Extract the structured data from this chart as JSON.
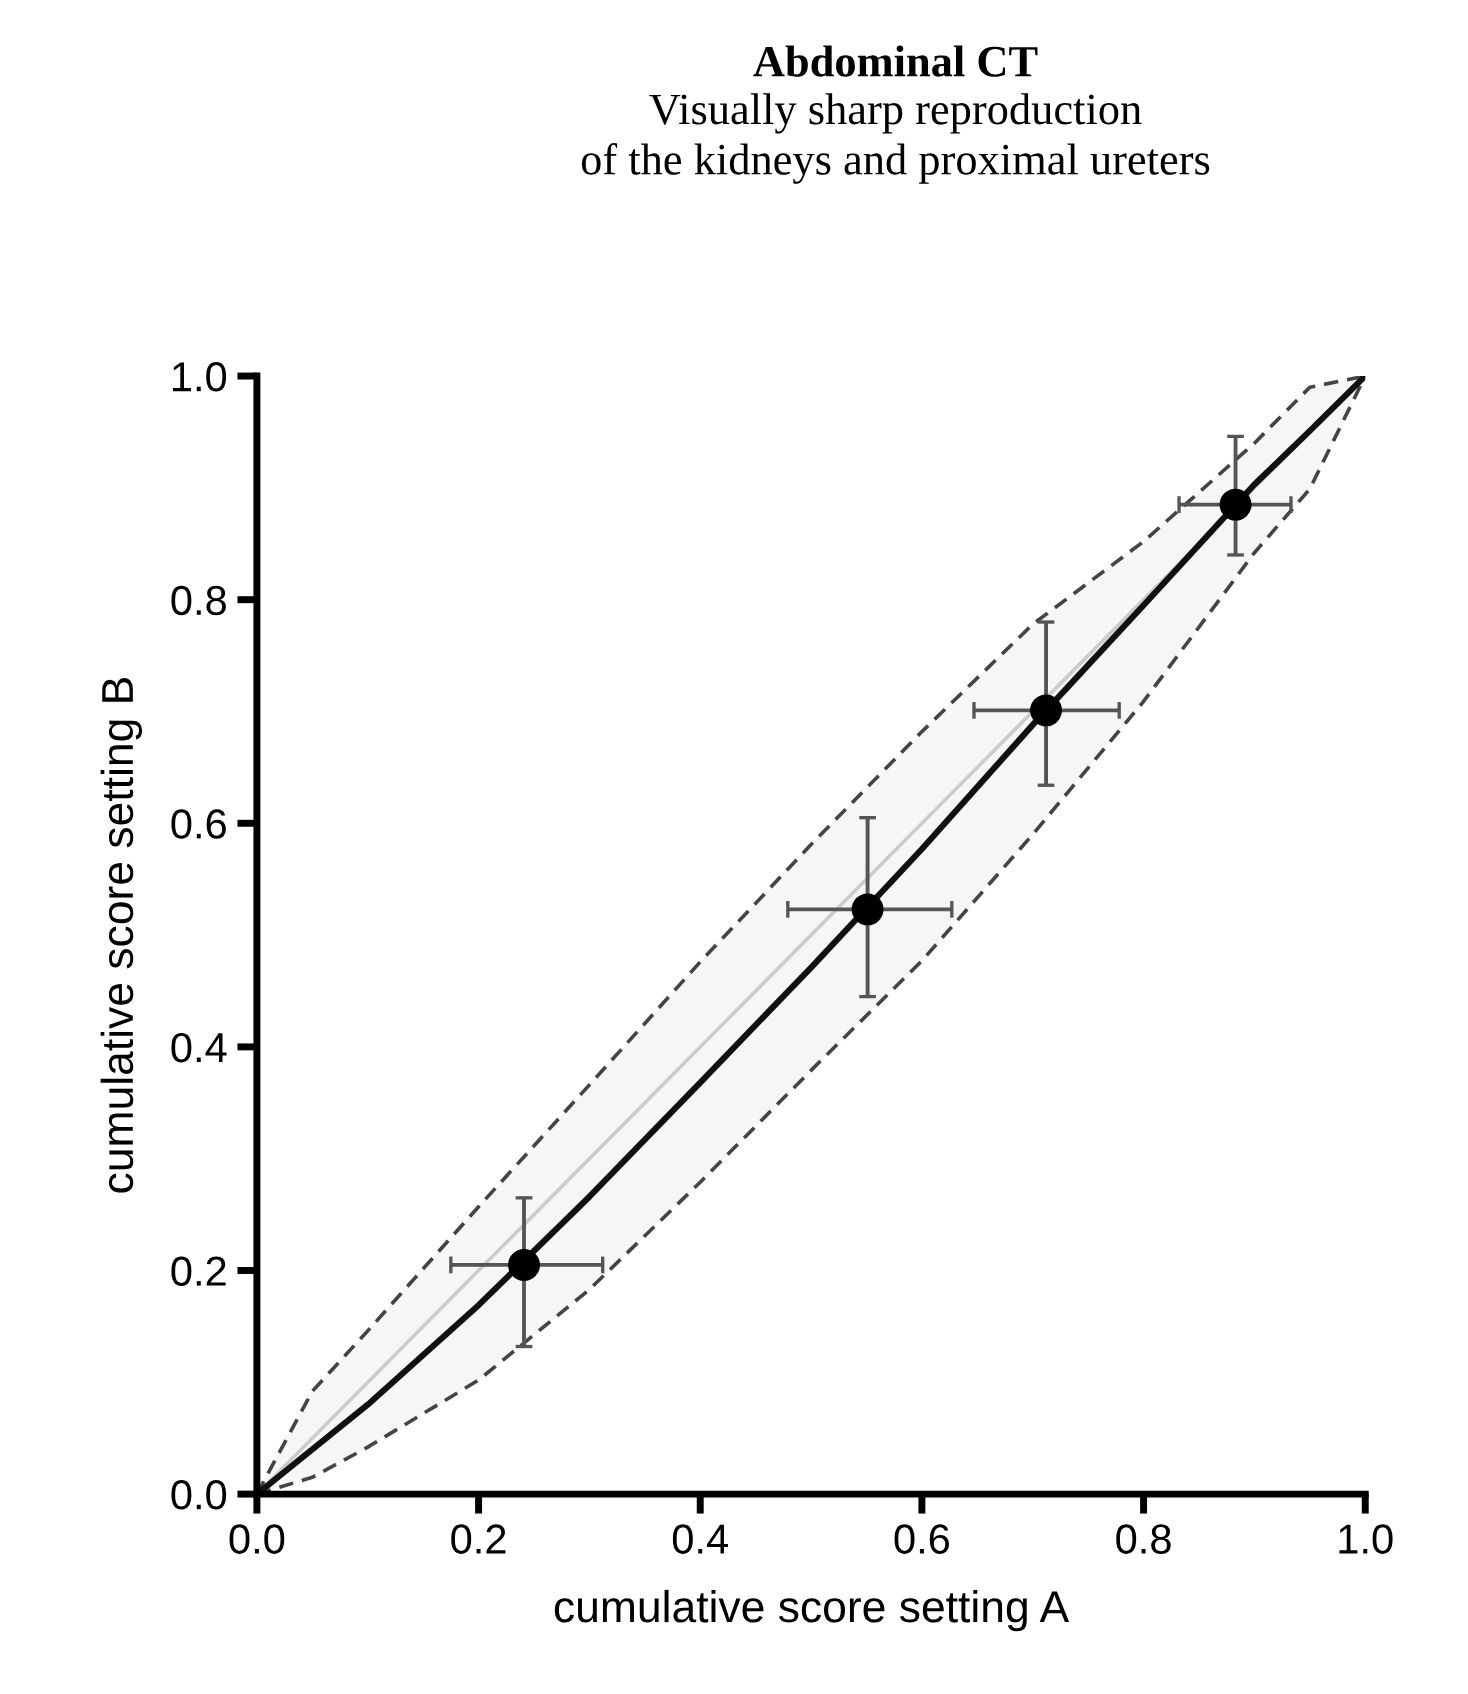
{
  "chart_data": {
    "type": "scatter",
    "title": "Abdominal CT",
    "subtitle": "Visually sharp reproduction\nof the kidneys and proximal ureters",
    "xlabel": "cumulative score setting A",
    "ylabel": "cumulative score setting B",
    "xlim": [
      0,
      1
    ],
    "ylim": [
      0,
      1
    ],
    "xticks": [
      {
        "value": 0,
        "label": "0.0"
      },
      {
        "value": 0.2,
        "label": "0.2"
      },
      {
        "value": 0.4,
        "label": "0.4"
      },
      {
        "value": 0.6,
        "label": "0.6"
      },
      {
        "value": 0.8,
        "label": "0.8"
      },
      {
        "value": 1,
        "label": "1.0"
      }
    ],
    "yticks": [
      {
        "value": 0,
        "label": "0.0"
      },
      {
        "value": 0.2,
        "label": "0.2"
      },
      {
        "value": 0.4,
        "label": "0.4"
      },
      {
        "value": 0.6,
        "label": "0.6"
      },
      {
        "value": 0.8,
        "label": "0.8"
      },
      {
        "value": 1,
        "label": "1.0"
      }
    ],
    "grid": false,
    "legend": false,
    "series": [
      {
        "type": "line",
        "color": "#cccccc",
        "line_style": "solid",
        "x": [
          0,
          1
        ],
        "values": [
          0,
          1
        ]
      },
      {
        "type": "line",
        "color": "#111111",
        "line_style": "solid",
        "x": [
          0,
          0.05,
          0.1,
          0.2,
          0.3,
          0.4,
          0.5,
          0.6,
          0.7,
          0.8,
          0.9,
          0.95,
          1
        ],
        "values": [
          0,
          0.04,
          0.08,
          0.169,
          0.266,
          0.368,
          0.471,
          0.577,
          0.688,
          0.795,
          0.903,
          0.951,
          1
        ],
        "lower": [
          0,
          0.015,
          0.042,
          0.102,
          0.183,
          0.279,
          0.379,
          0.477,
          0.59,
          0.709,
          0.842,
          0.899,
          1
        ],
        "upper": [
          0,
          0.092,
          0.146,
          0.257,
          0.366,
          0.476,
          0.581,
          0.682,
          0.778,
          0.852,
          0.94,
          0.99,
          1
        ]
      },
      {
        "color": "#000000",
        "marker": "circle",
        "x": [
          0.241,
          0.551,
          0.712,
          0.883
        ],
        "values": [
          0.205,
          0.523,
          0.701,
          0.885
        ],
        "errors": [
          [
            0.132,
            0.265
          ],
          [
            0.445,
            0.605
          ],
          [
            0.634,
            0.78
          ],
          [
            0.84,
            0.946
          ]
        ],
        "xerrors": [
          [
            0.175,
            0.312
          ],
          [
            0.479,
            0.627
          ],
          [
            0.647,
            0.778
          ],
          [
            0.832,
            0.933
          ]
        ]
      }
    ]
  }
}
